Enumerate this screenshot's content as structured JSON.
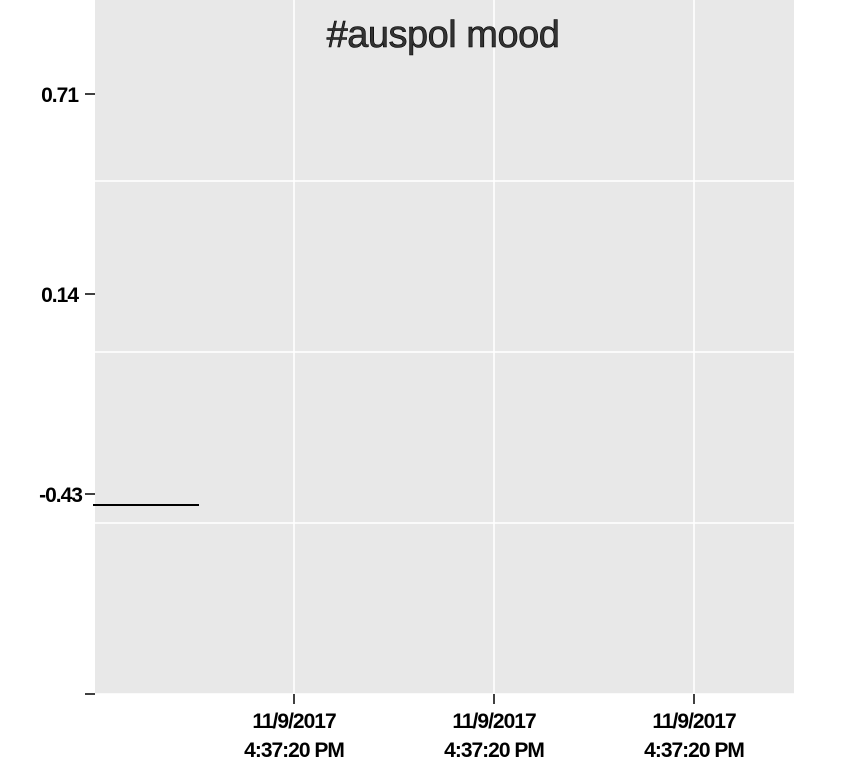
{
  "chart_data": {
    "type": "line",
    "title": "#auspol mood",
    "xlabel": "",
    "ylabel": "",
    "x_ticks": [
      {
        "line1": "11/9/2017",
        "line2": "4:37:20 PM"
      },
      {
        "line1": "11/9/2017",
        "line2": "4:37:20 PM"
      },
      {
        "line1": "11/9/2017",
        "line2": "4:37:20 PM"
      }
    ],
    "y_ticks": [
      "0.71",
      "0.14",
      "-0.43"
    ],
    "ylim": [
      -1.0,
      1.0
    ],
    "y_tick_values": [
      0.71,
      0.14,
      -0.43,
      -1.0
    ],
    "grid": true,
    "legend": "none",
    "series": [
      {
        "values": [
          -0.37,
          -0.37
        ]
      }
    ],
    "colors": {
      "panel": "#e8e8e8",
      "grid": "#ffffff",
      "line": "#000000"
    }
  }
}
